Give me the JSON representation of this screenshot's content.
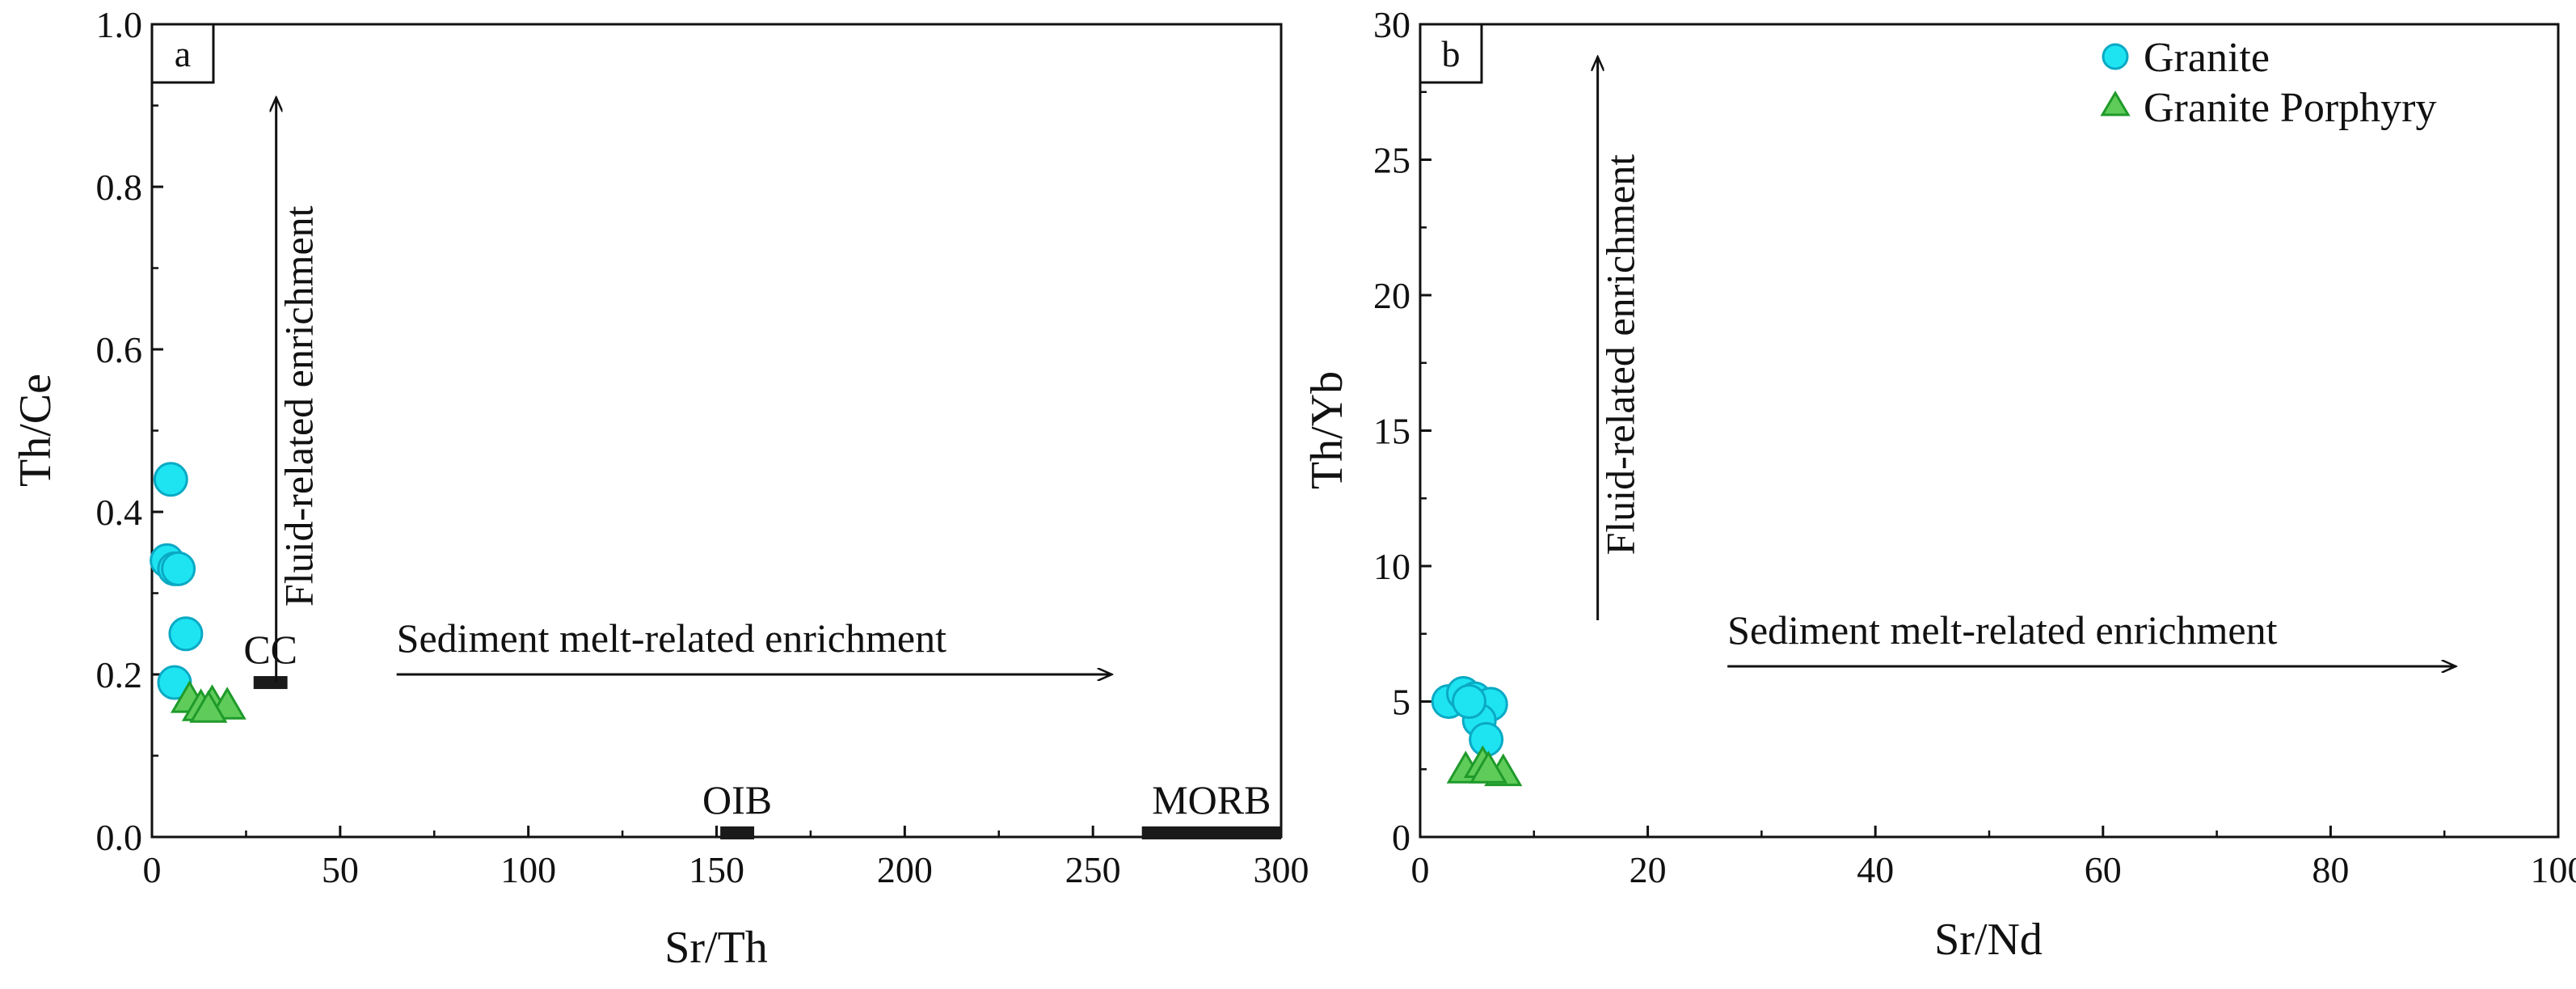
{
  "chart_data": [
    {
      "type": "scatter",
      "panel_label": "a",
      "xlabel": "Sr/Th",
      "ylabel": "Th/Ce",
      "xlim": [
        0,
        300
      ],
      "ylim": [
        0,
        1.0
      ],
      "xticks": [
        0,
        50,
        100,
        150,
        200,
        250,
        300
      ],
      "yticks": [
        0.0,
        0.2,
        0.4,
        0.6,
        0.8,
        1.0
      ],
      "ytick_labels": [
        "0.0",
        "0.2",
        "0.4",
        "0.6",
        "0.8",
        "1.0"
      ],
      "series": [
        {
          "name": "Granite",
          "marker": "circle",
          "color": "#1ee4f2",
          "points": [
            [
              5,
              0.44
            ],
            [
              4,
              0.34
            ],
            [
              6,
              0.33
            ],
            [
              7,
              0.33
            ],
            [
              9,
              0.25
            ],
            [
              6,
              0.19
            ]
          ]
        },
        {
          "name": "Granite Porphyry",
          "marker": "triangle",
          "color": "#5fcc5a",
          "points": [
            [
              10,
              0.17
            ],
            [
              13,
              0.16
            ],
            [
              16,
              0.165
            ],
            [
              20,
              0.162
            ],
            [
              15,
              0.158
            ]
          ]
        }
      ],
      "reference_bars": [
        {
          "label": "CC",
          "x": [
            27,
            36
          ],
          "y": 0.19
        },
        {
          "label": "OIB",
          "x": [
            151,
            160
          ],
          "y": 0.005
        },
        {
          "label": "MORB",
          "x": [
            263,
            300
          ],
          "y": 0.005
        }
      ],
      "annotations": [
        {
          "text": "Fluid-related enrichment",
          "orientation": "vertical",
          "arrow": {
            "x": 33,
            "y_from": 0.19,
            "y_to": 0.91
          }
        },
        {
          "text": "Sediment melt-related enrichment",
          "orientation": "horizontal",
          "arrow": {
            "y": 0.2,
            "x_from": 65,
            "x_to": 255
          }
        }
      ]
    },
    {
      "type": "scatter",
      "panel_label": "b",
      "xlabel": "Sr/Nd",
      "ylabel": "Th/Yb",
      "xlim": [
        0,
        100
      ],
      "ylim": [
        0,
        30
      ],
      "xticks": [
        0,
        20,
        40,
        60,
        80,
        100
      ],
      "yticks": [
        0,
        5,
        10,
        15,
        20,
        25,
        30
      ],
      "ytick_labels": [
        "0",
        "5",
        "10",
        "15",
        "20",
        "25",
        "30"
      ],
      "legend": {
        "position": "top-right",
        "entries": [
          "Granite",
          "Granite Porphyry"
        ]
      },
      "series": [
        {
          "name": "Granite",
          "marker": "circle",
          "color": "#1ee4f2",
          "points": [
            [
              2.5,
              5.0
            ],
            [
              3.8,
              5.3
            ],
            [
              4.8,
              5.1
            ],
            [
              6.2,
              4.9
            ],
            [
              5.2,
              4.3
            ],
            [
              5.8,
              3.6
            ],
            [
              4.3,
              5.0
            ]
          ]
        },
        {
          "name": "Granite Porphyry",
          "marker": "triangle",
          "color": "#5fcc5a",
          "points": [
            [
              4.0,
              2.5
            ],
            [
              5.5,
              2.7
            ],
            [
              7.3,
              2.4
            ],
            [
              6.0,
              2.5
            ]
          ]
        }
      ],
      "annotations": [
        {
          "text": "Fluid-related enrichment",
          "orientation": "vertical",
          "arrow": {
            "x": 15.6,
            "y_from": 8.0,
            "y_to": 28.8
          }
        },
        {
          "text": "Sediment melt-related enrichment",
          "orientation": "horizontal",
          "arrow": {
            "y": 6.3,
            "x_from": 27,
            "x_to": 91
          }
        }
      ]
    }
  ]
}
